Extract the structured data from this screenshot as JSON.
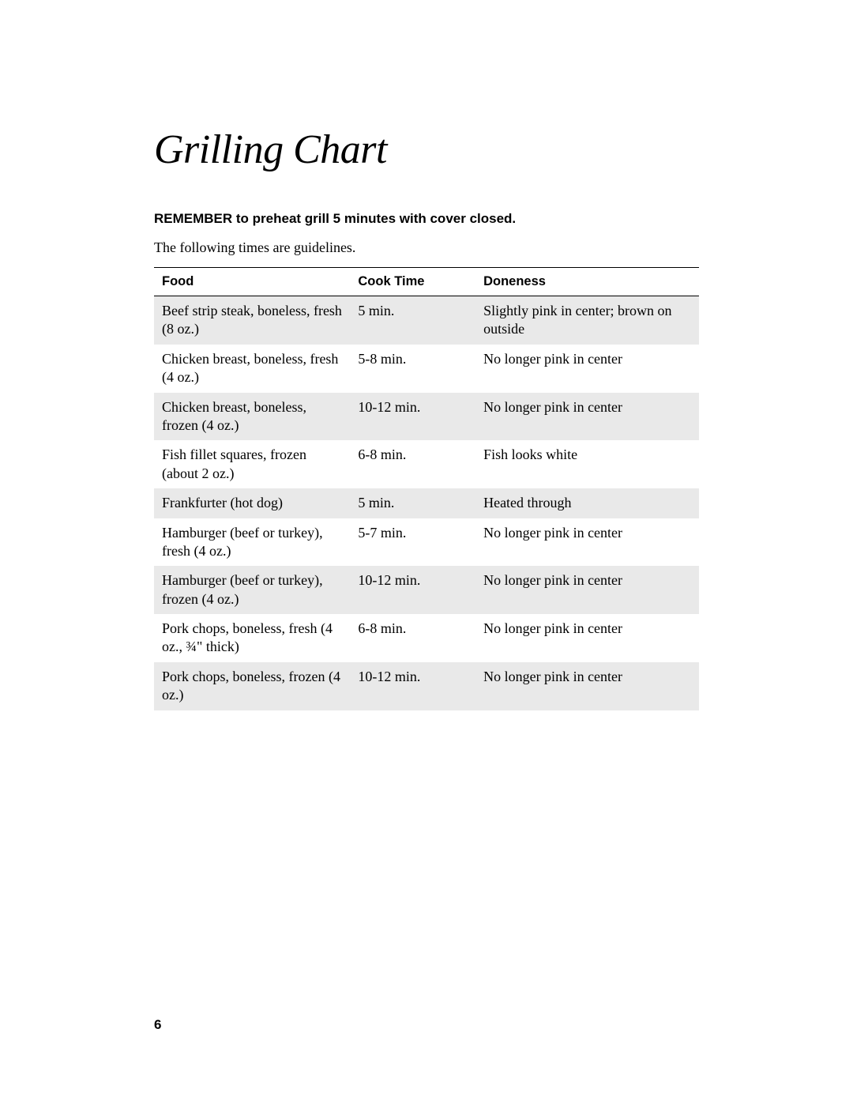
{
  "page": {
    "title": "Grilling Chart",
    "reminder": "REMEMBER to preheat grill 5 minutes with cover closed.",
    "guidelines": "The following times are guidelines.",
    "page_number": "6"
  },
  "table": {
    "columns": [
      "Food",
      "Cook Time",
      "Doneness"
    ],
    "rows": [
      {
        "food": "Beef strip steak, boneless, fresh (8 oz.)",
        "time": "5 min.",
        "doneness": "Slightly pink in center; brown on outside"
      },
      {
        "food": "Chicken breast, boneless, fresh (4 oz.)",
        "time": "5-8 min.",
        "doneness": "No longer pink in center"
      },
      {
        "food": "Chicken breast, boneless, frozen (4 oz.)",
        "time": "10-12 min.",
        "doneness": "No longer pink in center"
      },
      {
        "food": "Fish fillet squares, frozen (about 2 oz.)",
        "time": "6-8 min.",
        "doneness": "Fish looks white"
      },
      {
        "food": "Frankfurter (hot dog)",
        "time": "5 min.",
        "doneness": "Heated through"
      },
      {
        "food": "Hamburger (beef or turkey), fresh (4 oz.)",
        "time": "5-7 min.",
        "doneness": "No longer pink in center"
      },
      {
        "food": "Hamburger (beef or turkey), frozen (4 oz.)",
        "time": "10-12 min.",
        "doneness": "No longer pink in center"
      },
      {
        "food": "Pork chops, boneless, fresh (4 oz., ¾\" thick)",
        "time": "6-8 min.",
        "doneness": "No longer pink in center"
      },
      {
        "food": "Pork chops, boneless, frozen (4 oz.)",
        "time": "10-12 min.",
        "doneness": "No longer pink in center"
      }
    ]
  },
  "styling": {
    "background_color": "#ffffff",
    "text_color": "#000000",
    "row_shade_color": "#e9e9e9",
    "border_color": "#000000",
    "title_fontsize": 52,
    "header_fontsize": 16.5,
    "body_fontsize": 18,
    "reminder_fontsize": 17,
    "serif_font": "Georgia",
    "sans_font": "Arial"
  }
}
